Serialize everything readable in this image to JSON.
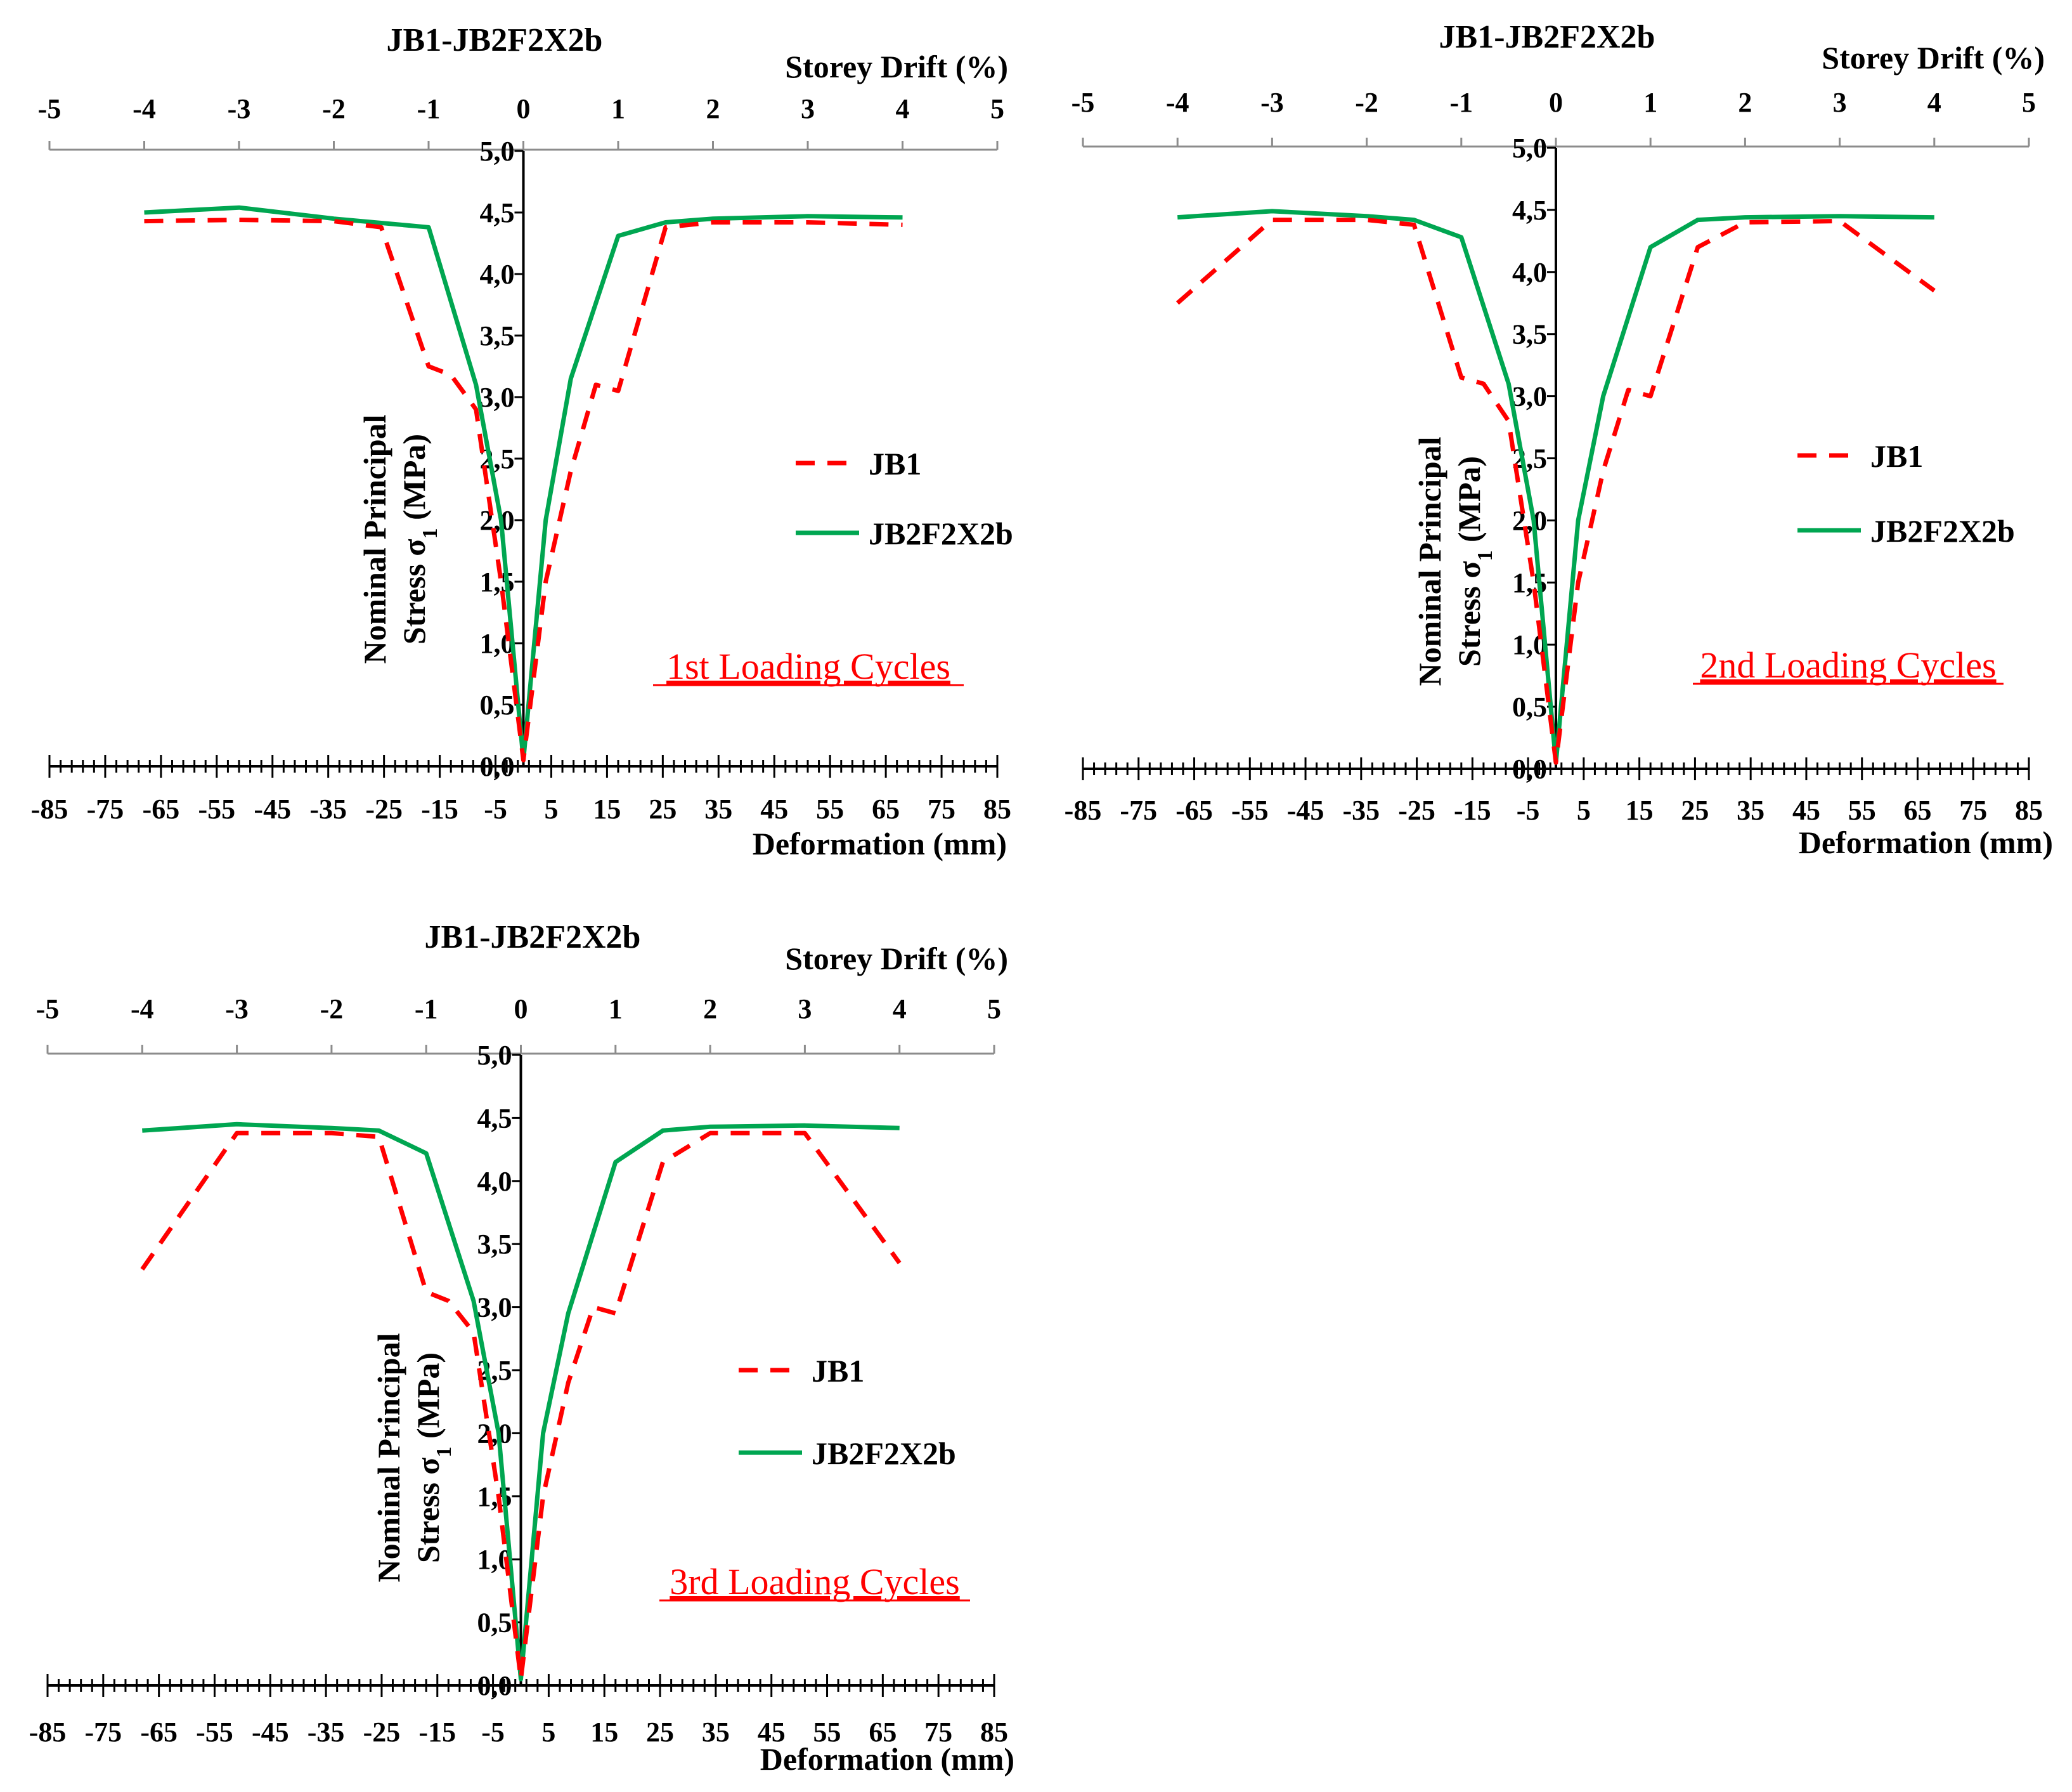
{
  "figure": {
    "colors": {
      "jb1": "#ff0000",
      "jb2": "#00a651",
      "axis": "#000000",
      "top_axis": "#8c8c8c",
      "note": "#ff0000"
    }
  },
  "chart_data": [
    {
      "type": "line",
      "title": "JB1-JB2F2X2b",
      "xlabel": "Deformation (mm)",
      "x2label": "Storey Drift (%)",
      "ylabel_line1": "Nominal Principal",
      "ylabel_line2": "Stress σ",
      "ylabel_sub": "1",
      "ylabel_unit": " (MPa)",
      "annotation": "1st Loading Cycles",
      "xlim": [
        -85,
        85
      ],
      "ylim": [
        0,
        5
      ],
      "x_ticks": [
        "-85",
        "-75",
        "-65",
        "-55",
        "-45",
        "-35",
        "-25",
        "-15",
        "-5",
        "5",
        "15",
        "25",
        "35",
        "45",
        "55",
        "65",
        "75",
        "85"
      ],
      "x2_ticks": [
        "-5",
        "-4",
        "-3",
        "-2",
        "-1",
        "0",
        "1",
        "2",
        "3",
        "4",
        "5"
      ],
      "y_ticks": [
        "0,0",
        "0,5",
        "1,0",
        "1,5",
        "2,0",
        "2,5",
        "3,0",
        "3,5",
        "4,0",
        "4,5",
        "5,0"
      ],
      "series": [
        {
          "name": "JB1",
          "style": "dashed",
          "x": [
            -68,
            -51,
            -34,
            -25.5,
            -17,
            -13,
            -8.5,
            -4,
            0,
            4,
            8.5,
            13,
            17,
            25.5,
            34,
            51,
            68
          ],
          "y": [
            4.43,
            4.44,
            4.43,
            4.38,
            3.25,
            3.18,
            2.9,
            1.5,
            0.05,
            1.5,
            2.4,
            3.1,
            3.05,
            4.38,
            4.42,
            4.42,
            4.4
          ]
        },
        {
          "name": "JB2F2X2b",
          "style": "solid",
          "x": [
            -68,
            -51,
            -34,
            -17,
            -8.5,
            -4,
            0,
            4,
            8.5,
            17,
            25.5,
            34,
            51,
            68
          ],
          "y": [
            4.5,
            4.54,
            4.45,
            4.38,
            3.1,
            2.0,
            0.05,
            2.0,
            3.15,
            4.31,
            4.42,
            4.45,
            4.47,
            4.46
          ]
        }
      ]
    },
    {
      "type": "line",
      "title": "JB1-JB2F2X2b",
      "xlabel": "Deformation (mm)",
      "x2label": "Storey Drift (%)",
      "ylabel_line1": "Nominal Principal",
      "ylabel_line2": "Stress σ",
      "ylabel_sub": "1",
      "ylabel_unit": " (MPa)",
      "annotation": "2nd Loading Cycles",
      "xlim": [
        -85,
        85
      ],
      "ylim": [
        0,
        5
      ],
      "x_ticks": [
        "-85",
        "-75",
        "-65",
        "-55",
        "-45",
        "-35",
        "-25",
        "-15",
        "-5",
        "5",
        "15",
        "25",
        "35",
        "45",
        "55",
        "65",
        "75",
        "85"
      ],
      "x2_ticks": [
        "-5",
        "-4",
        "-3",
        "-2",
        "-1",
        "0",
        "1",
        "2",
        "3",
        "4",
        "5"
      ],
      "y_ticks": [
        "0,0",
        "0,5",
        "1,0",
        "1,5",
        "2,0",
        "2,5",
        "3,0",
        "3,5",
        "4,0",
        "4,5",
        "5,0"
      ],
      "series": [
        {
          "name": "JB1",
          "style": "dashed",
          "x": [
            -68,
            -51,
            -34,
            -25.5,
            -17,
            -13,
            -8.5,
            -4,
            0,
            4,
            8.5,
            13,
            17,
            25.5,
            34,
            51,
            68
          ],
          "y": [
            3.75,
            4.42,
            4.42,
            4.38,
            3.15,
            3.1,
            2.8,
            1.5,
            0.05,
            1.5,
            2.4,
            3.05,
            3.0,
            4.2,
            4.4,
            4.41,
            3.85
          ]
        },
        {
          "name": "JB2F2X2b",
          "style": "solid",
          "x": [
            -68,
            -51,
            -34,
            -25.5,
            -17,
            -8.5,
            -4,
            0,
            4,
            8.5,
            17,
            25.5,
            34,
            51,
            68
          ],
          "y": [
            4.44,
            4.49,
            4.45,
            4.42,
            4.28,
            3.1,
            2.0,
            0.05,
            2.0,
            3.0,
            4.2,
            4.42,
            4.44,
            4.45,
            4.44
          ]
        }
      ]
    },
    {
      "type": "line",
      "title": "JB1-JB2F2X2b",
      "xlabel": "Deformation (mm)",
      "x2label": "Storey Drift (%)",
      "ylabel_line1": "Nominal Principal",
      "ylabel_line2": "Stress σ",
      "ylabel_sub": "1",
      "ylabel_unit": " (MPa)",
      "annotation": "3rd Loading Cycles",
      "xlim": [
        -85,
        85
      ],
      "ylim": [
        0,
        5
      ],
      "x_ticks": [
        "-85",
        "-75",
        "-65",
        "-55",
        "-45",
        "-35",
        "-25",
        "-15",
        "-5",
        "5",
        "15",
        "25",
        "35",
        "45",
        "55",
        "65",
        "75",
        "85"
      ],
      "x2_ticks": [
        "-5",
        "-4",
        "-3",
        "-2",
        "-1",
        "0",
        "1",
        "2",
        "3",
        "4",
        "5"
      ],
      "y_ticks": [
        "0,0",
        "0,5",
        "1,0",
        "1,5",
        "2,0",
        "2,5",
        "3,0",
        "3,5",
        "4,0",
        "4,5",
        "5,0"
      ],
      "series": [
        {
          "name": "JB1",
          "style": "dashed",
          "x": [
            -68,
            -51,
            -34,
            -25.5,
            -17,
            -13,
            -8.5,
            -4,
            0,
            4,
            8.5,
            13,
            17,
            25.5,
            34,
            51,
            68
          ],
          "y": [
            3.3,
            4.38,
            4.38,
            4.35,
            3.12,
            3.05,
            2.8,
            1.5,
            0.05,
            1.5,
            2.4,
            3.0,
            2.95,
            4.15,
            4.38,
            4.38,
            3.35
          ]
        },
        {
          "name": "JB2F2X2b",
          "style": "solid",
          "x": [
            -68,
            -51,
            -34,
            -25.5,
            -17,
            -8.5,
            -4,
            0,
            4,
            8.5,
            17,
            25.5,
            34,
            51,
            68
          ],
          "y": [
            4.4,
            4.45,
            4.42,
            4.4,
            4.22,
            3.05,
            2.0,
            0.05,
            2.0,
            2.95,
            4.15,
            4.4,
            4.43,
            4.44,
            4.42
          ]
        }
      ]
    }
  ]
}
